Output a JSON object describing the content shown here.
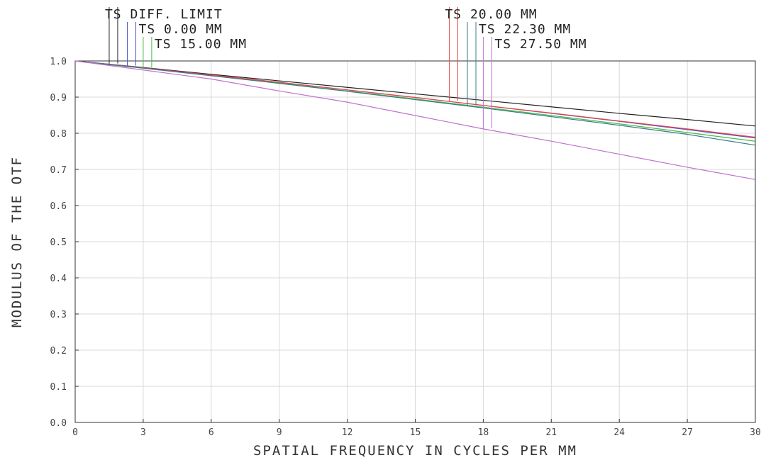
{
  "chart_data": {
    "type": "line",
    "xlabel": "SPATIAL FREQUENCY IN CYCLES PER MM",
    "ylabel": "MODULUS OF THE OTF",
    "xlim": [
      0,
      30
    ],
    "ylim": [
      0,
      1
    ],
    "xticks": [
      "0",
      "3",
      "6",
      "9",
      "12",
      "15",
      "18",
      "21",
      "24",
      "27",
      "30"
    ],
    "yticks": [
      "0.0",
      "0.1",
      "0.2",
      "0.3",
      "0.4",
      "0.5",
      "0.6",
      "0.7",
      "0.8",
      "0.9",
      "1.0"
    ],
    "grid": true,
    "x": [
      0,
      3,
      6,
      9,
      12,
      15,
      18,
      21,
      24,
      27,
      30
    ],
    "series": [
      {
        "name": "TS DIFF. LIMIT",
        "color": "#222222",
        "values": [
          1.0,
          0.982,
          0.963,
          0.945,
          0.927,
          0.909,
          0.891,
          0.873,
          0.855,
          0.838,
          0.82
        ],
        "legend_group": 0,
        "leader_x": 1.5
      },
      {
        "name": "TS 0.00 MM",
        "color": "#4a55c8",
        "values": [
          1.0,
          0.981,
          0.961,
          0.941,
          0.92,
          0.899,
          0.877,
          0.855,
          0.833,
          0.81,
          0.787
        ],
        "legend_group": 1,
        "leader_x": 2.3
      },
      {
        "name": "TS 15.00 MM",
        "color": "#44bb44",
        "values": [
          1.0,
          0.98,
          0.96,
          0.939,
          0.917,
          0.895,
          0.872,
          0.849,
          0.826,
          0.802,
          0.778
        ],
        "legend_group": 2,
        "leader_x": 3.0
      },
      {
        "name": "TS 20.00 MM",
        "color": "#ee4444",
        "values": [
          1.0,
          0.981,
          0.961,
          0.941,
          0.92,
          0.899,
          0.877,
          0.856,
          0.834,
          0.812,
          0.789
        ],
        "legend_group": 0,
        "leader_x": 16.5
      },
      {
        "name": "TS 22.30 MM",
        "color": "#3a7a8a",
        "values": [
          1.0,
          0.98,
          0.959,
          0.938,
          0.916,
          0.893,
          0.87,
          0.846,
          0.822,
          0.797,
          0.767
        ],
        "legend_group": 1,
        "leader_x": 17.3
      },
      {
        "name": "TS 27.50 MM",
        "color": "#c070d0",
        "values": [
          1.0,
          0.975,
          0.95,
          0.917,
          0.886,
          0.849,
          0.812,
          0.778,
          0.742,
          0.706,
          0.672
        ],
        "legend_group": 2,
        "leader_x": 18.0
      }
    ]
  }
}
